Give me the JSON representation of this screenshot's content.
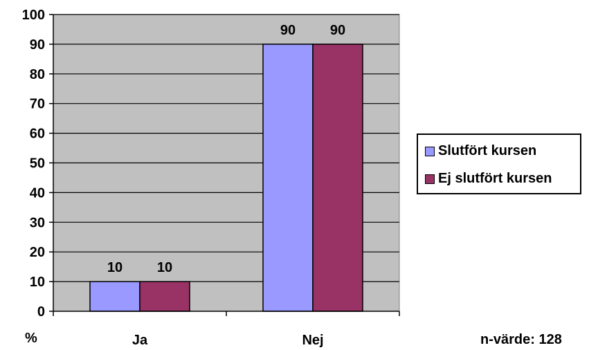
{
  "chart_data": {
    "type": "bar",
    "categories": [
      "Ja",
      "Nej"
    ],
    "series": [
      {
        "name": "Slutfört kursen",
        "values": [
          10,
          90
        ],
        "color": "#9999FF"
      },
      {
        "name": "Ej slutfört kursen",
        "values": [
          10,
          90
        ],
        "color": "#993366"
      }
    ],
    "ylabel": "%",
    "ylim": [
      0,
      100
    ],
    "yticks": [
      0,
      10,
      20,
      30,
      40,
      50,
      60,
      70,
      80,
      90,
      100
    ],
    "grid": true,
    "plot_background": "#C0C0C0",
    "legend_position": "right",
    "annotation": "n-värde: 128"
  }
}
